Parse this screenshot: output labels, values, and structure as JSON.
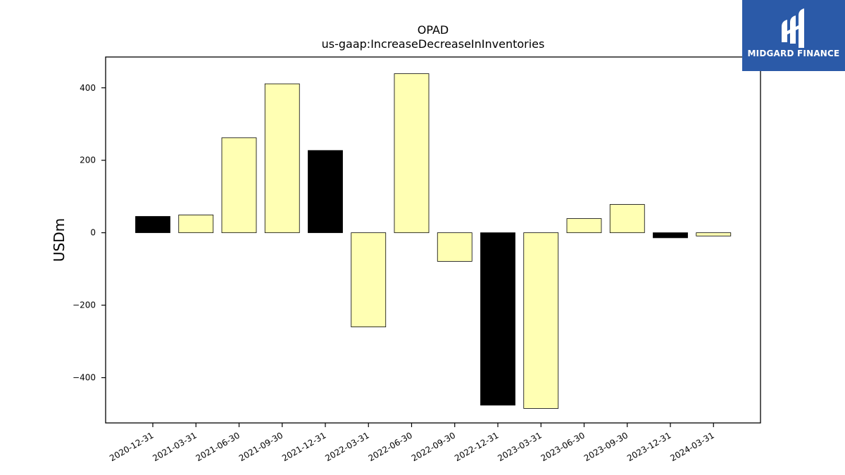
{
  "chart_data": {
    "type": "bar",
    "title": "OPAD",
    "subtitle": "us-gaap:IncreaseDecreaseInInventories",
    "ylabel": "USDm",
    "xlabel": "",
    "ylim": [
      -525,
      485
    ],
    "yticks": [
      400,
      200,
      0,
      -200,
      -400
    ],
    "ytick_labels": [
      "400",
      "200",
      "0",
      "−200",
      "−400"
    ],
    "categories": [
      "2020-12-31",
      "2021-03-31",
      "2021-06-30",
      "2021-09-30",
      "2021-12-31",
      "2022-03-31",
      "2022-06-30",
      "2022-09-30",
      "2022-12-31",
      "2023-03-31",
      "2023-06-30",
      "2023-09-30",
      "2023-12-31",
      "2024-03-31"
    ],
    "values": [
      45,
      49,
      262,
      411,
      227,
      -260,
      439,
      -79,
      -476,
      -485,
      39,
      78,
      -14,
      -9
    ],
    "bar_colors": [
      "#000000",
      "#ffffb3",
      "#ffffb3",
      "#ffffb3",
      "#000000",
      "#ffffb3",
      "#ffffb3",
      "#ffffb3",
      "#000000",
      "#ffffb3",
      "#ffffb3",
      "#ffffb3",
      "#000000",
      "#ffffb3"
    ],
    "grid": false,
    "legend": "none"
  },
  "logo": {
    "text": "MIDGARD FINANCE",
    "bg_color": "#2b5aa8"
  }
}
